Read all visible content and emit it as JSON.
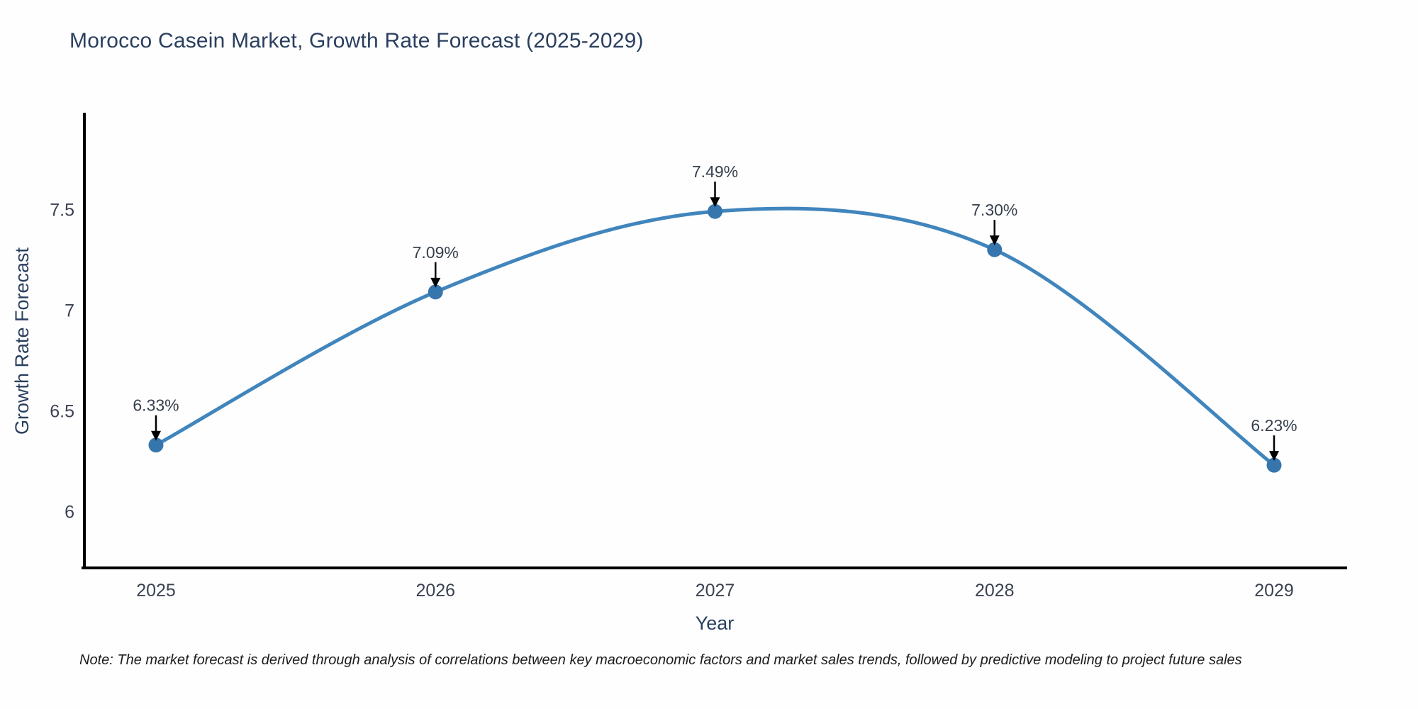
{
  "chart_data": {
    "type": "line",
    "title": "Morocco Casein Market, Growth Rate Forecast (2025-2029)",
    "xlabel": "Year",
    "ylabel": "Growth Rate Forecast",
    "categories": [
      "2025",
      "2026",
      "2027",
      "2028",
      "2029"
    ],
    "values": [
      6.33,
      7.09,
      7.49,
      7.3,
      6.23
    ],
    "point_labels": [
      "6.33%",
      "7.09%",
      "7.49%",
      "7.30%",
      "6.23%"
    ],
    "yticks": [
      6,
      6.5,
      7,
      7.5
    ],
    "ytick_labels": [
      "6",
      "6.5",
      "7",
      "7.5"
    ],
    "ylim": [
      5.72,
      7.98
    ],
    "grid": false,
    "legend": false,
    "line_shape": "spline",
    "line_color": "#4185bd",
    "marker_color": "#3776ad",
    "axis_color": "#000000",
    "annotation_arrow_color": "#000000",
    "title_color": "#2a3f5f",
    "note": "Note: The market forecast is derived through analysis of correlations between key macroeconomic factors and market sales trends, followed by predictive modeling to project future sales"
  }
}
